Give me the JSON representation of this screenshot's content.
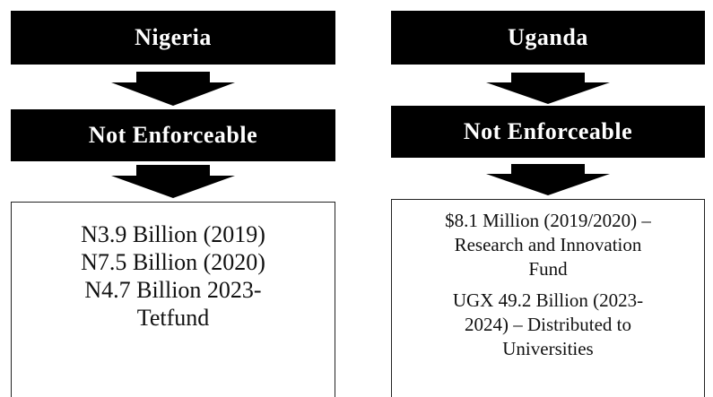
{
  "columns": [
    {
      "title": "Nigeria",
      "status": "Not Enforceable",
      "paragraphs": [
        [
          "N3.9 Billion (2019)",
          "N7.5 Billion (2020)",
          "N4.7 Billion 2023-",
          "Tetfund"
        ]
      ]
    },
    {
      "title": "Uganda",
      "status": "Not Enforceable",
      "paragraphs": [
        [
          "$8.1 Million (2019/2020) –",
          "Research and Innovation",
          "Fund"
        ],
        [
          "UGX 49.2 Billion (2023-",
          "2024) – Distributed to",
          "Universities"
        ]
      ]
    }
  ]
}
